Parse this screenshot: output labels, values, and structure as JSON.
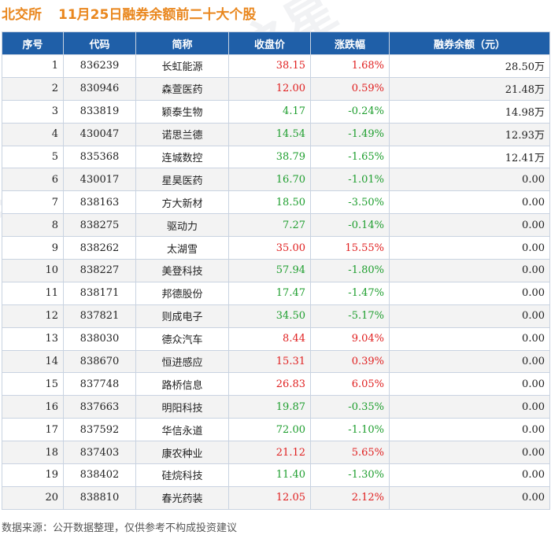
{
  "title": {
    "exchange": "北交所",
    "main": "11月25日融券余额前二十大个股"
  },
  "table": {
    "headers": [
      "序号",
      "代码",
      "简称",
      "收盘价",
      "涨跌幅",
      "融券余额（元）"
    ],
    "rows": [
      {
        "idx": "1",
        "code": "836239",
        "name": "长虹能源",
        "price": "38.15",
        "change": "1.68%",
        "balance": "28.50万",
        "dir": "up"
      },
      {
        "idx": "2",
        "code": "830946",
        "name": "森萱医药",
        "price": "12.00",
        "change": "0.59%",
        "balance": "21.48万",
        "dir": "up"
      },
      {
        "idx": "3",
        "code": "833819",
        "name": "颖泰生物",
        "price": "4.17",
        "change": "-0.24%",
        "balance": "14.98万",
        "dir": "down"
      },
      {
        "idx": "4",
        "code": "430047",
        "name": "诺思兰德",
        "price": "14.54",
        "change": "-1.49%",
        "balance": "12.93万",
        "dir": "down"
      },
      {
        "idx": "5",
        "code": "835368",
        "name": "连城数控",
        "price": "38.79",
        "change": "-1.65%",
        "balance": "12.41万",
        "dir": "down"
      },
      {
        "idx": "6",
        "code": "430017",
        "name": "星昊医药",
        "price": "16.70",
        "change": "-1.01%",
        "balance": "0.00",
        "dir": "down"
      },
      {
        "idx": "7",
        "code": "838163",
        "name": "方大新材",
        "price": "18.50",
        "change": "-3.50%",
        "balance": "0.00",
        "dir": "down"
      },
      {
        "idx": "8",
        "code": "838275",
        "name": "驱动力",
        "price": "7.27",
        "change": "-0.14%",
        "balance": "0.00",
        "dir": "down"
      },
      {
        "idx": "9",
        "code": "838262",
        "name": "太湖雪",
        "price": "35.00",
        "change": "15.55%",
        "balance": "0.00",
        "dir": "up"
      },
      {
        "idx": "10",
        "code": "838227",
        "name": "美登科技",
        "price": "57.94",
        "change": "-1.80%",
        "balance": "0.00",
        "dir": "down"
      },
      {
        "idx": "11",
        "code": "838171",
        "name": "邦德股份",
        "price": "17.47",
        "change": "-1.47%",
        "balance": "0.00",
        "dir": "down"
      },
      {
        "idx": "12",
        "code": "837821",
        "name": "则成电子",
        "price": "34.50",
        "change": "-5.17%",
        "balance": "0.00",
        "dir": "down"
      },
      {
        "idx": "13",
        "code": "838030",
        "name": "德众汽车",
        "price": "8.44",
        "change": "9.04%",
        "balance": "0.00",
        "dir": "up"
      },
      {
        "idx": "14",
        "code": "838670",
        "name": "恒进感应",
        "price": "15.31",
        "change": "0.39%",
        "balance": "0.00",
        "dir": "up"
      },
      {
        "idx": "15",
        "code": "837748",
        "name": "路桥信息",
        "price": "26.83",
        "change": "6.05%",
        "balance": "0.00",
        "dir": "up"
      },
      {
        "idx": "16",
        "code": "837663",
        "name": "明阳科技",
        "price": "19.87",
        "change": "-0.35%",
        "balance": "0.00",
        "dir": "down"
      },
      {
        "idx": "17",
        "code": "837592",
        "name": "华信永道",
        "price": "72.00",
        "change": "-1.10%",
        "balance": "0.00",
        "dir": "down"
      },
      {
        "idx": "18",
        "code": "837403",
        "name": "康农种业",
        "price": "21.12",
        "change": "5.65%",
        "balance": "0.00",
        "dir": "up"
      },
      {
        "idx": "19",
        "code": "838402",
        "name": "硅烷科技",
        "price": "11.40",
        "change": "-1.30%",
        "balance": "0.00",
        "dir": "down"
      },
      {
        "idx": "20",
        "code": "838810",
        "name": "春光药装",
        "price": "12.05",
        "change": "2.12%",
        "balance": "0.00",
        "dir": "up"
      }
    ]
  },
  "footer": {
    "source": "数据来源：公开数据整理，仅供参考不构成投资建议"
  },
  "watermark": {
    "text": "证券之星"
  },
  "colors": {
    "title": "#e9871e",
    "header_bg": "#1f5fa8",
    "up": "#e02020",
    "down": "#1e9e2e"
  }
}
